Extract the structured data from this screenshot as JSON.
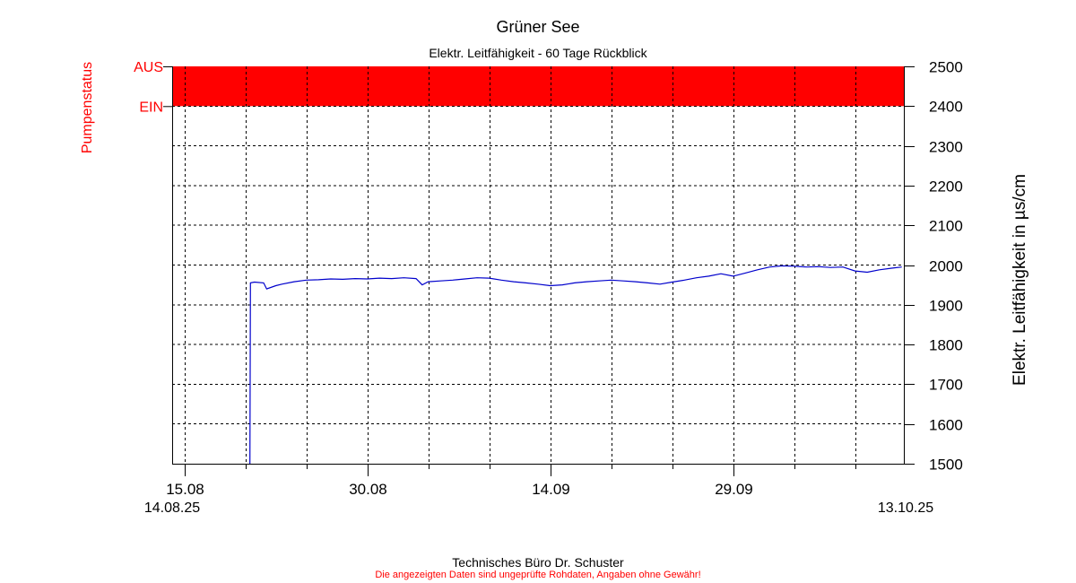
{
  "header": {
    "title": "Grüner See",
    "subtitle": "Elektr. Leitfähigkeit - 60 Tage Rückblick"
  },
  "footer": {
    "company": "Technisches Büro Dr. Schuster",
    "disclaimer": "Die angezeigten Daten sind ungeprüfte Rohdaten, Angaben ohne Gewähr!"
  },
  "colors": {
    "pump": "#ff0000",
    "series": "#0000cc",
    "axis": "#000000",
    "disclaimer": "#ff0000"
  },
  "chart_data": {
    "type": "line",
    "title": "Grüner See",
    "subtitle": "Elektr. Leitfähigkeit - 60 Tage Rückblick",
    "ylabel": "Elektr. Leitfähigkeit in µs/cm",
    "ylabel_left": "Pumpenstatus",
    "ylim": [
      1500,
      2500
    ],
    "yticks": [
      1500,
      1600,
      1700,
      1800,
      1900,
      2000,
      2100,
      2200,
      2300,
      2400,
      2500
    ],
    "xlim": [
      "2025-08-14",
      "2025-10-13"
    ],
    "x_major_ticks": [
      {
        "date": "2025-08-15",
        "label": "15.08"
      },
      {
        "date": "2025-08-30",
        "label": "30.08"
      },
      {
        "date": "2025-09-14",
        "label": "14.09"
      },
      {
        "date": "2025-09-29",
        "label": "29.09"
      }
    ],
    "x_minor_tick_dates": [
      "2025-08-20",
      "2025-08-25",
      "2025-09-04",
      "2025-09-09",
      "2025-09-19",
      "2025-09-24",
      "2025-10-04",
      "2025-10-09"
    ],
    "x_start_label": "14.08.25",
    "x_end_label": "13.10.25",
    "grid": true,
    "pump_status": {
      "labels": [
        "AUS",
        "EIN"
      ],
      "state": "AUS",
      "from": "2025-08-14",
      "to": "2025-10-13"
    },
    "series": [
      {
        "points": [
          [
            "2025-08-20T09:00",
            1500
          ],
          [
            "2025-08-20T10:00",
            1955
          ],
          [
            "2025-08-20T18:00",
            1957
          ],
          [
            "2025-08-21T12:00",
            1955
          ],
          [
            "2025-08-21T18:00",
            1940
          ],
          [
            "2025-08-22T12:00",
            1948
          ],
          [
            "2025-08-23T00:00",
            1952
          ],
          [
            "2025-08-24T00:00",
            1958
          ],
          [
            "2025-08-25T00:00",
            1962
          ],
          [
            "2025-08-26T00:00",
            1963
          ],
          [
            "2025-08-27T00:00",
            1965
          ],
          [
            "2025-08-28T00:00",
            1964
          ],
          [
            "2025-08-29T00:00",
            1966
          ],
          [
            "2025-08-30T00:00",
            1965
          ],
          [
            "2025-08-31T00:00",
            1967
          ],
          [
            "2025-09-01T00:00",
            1966
          ],
          [
            "2025-09-02T00:00",
            1968
          ],
          [
            "2025-09-03T00:00",
            1966
          ],
          [
            "2025-09-03T12:00",
            1950
          ],
          [
            "2025-09-04T00:00",
            1958
          ],
          [
            "2025-09-05T00:00",
            1960
          ],
          [
            "2025-09-06T00:00",
            1962
          ],
          [
            "2025-09-07T00:00",
            1965
          ],
          [
            "2025-09-08T00:00",
            1968
          ],
          [
            "2025-09-09T00:00",
            1967
          ],
          [
            "2025-09-10T00:00",
            1962
          ],
          [
            "2025-09-11T00:00",
            1958
          ],
          [
            "2025-09-12T00:00",
            1955
          ],
          [
            "2025-09-13T00:00",
            1952
          ],
          [
            "2025-09-14T00:00",
            1948
          ],
          [
            "2025-09-15T00:00",
            1950
          ],
          [
            "2025-09-16T00:00",
            1955
          ],
          [
            "2025-09-17T00:00",
            1958
          ],
          [
            "2025-09-18T00:00",
            1960
          ],
          [
            "2025-09-19T00:00",
            1962
          ],
          [
            "2025-09-20T00:00",
            1960
          ],
          [
            "2025-09-21T00:00",
            1958
          ],
          [
            "2025-09-22T00:00",
            1955
          ],
          [
            "2025-09-23T00:00",
            1952
          ],
          [
            "2025-09-24T00:00",
            1957
          ],
          [
            "2025-09-25T00:00",
            1962
          ],
          [
            "2025-09-26T00:00",
            1968
          ],
          [
            "2025-09-27T00:00",
            1972
          ],
          [
            "2025-09-28T00:00",
            1978
          ],
          [
            "2025-09-29T00:00",
            1972
          ],
          [
            "2025-09-30T00:00",
            1980
          ],
          [
            "2025-10-01T00:00",
            1988
          ],
          [
            "2025-10-02T00:00",
            1995
          ],
          [
            "2025-10-03T00:00",
            1998
          ],
          [
            "2025-10-04T00:00",
            1997
          ],
          [
            "2025-10-05T00:00",
            1995
          ],
          [
            "2025-10-06T00:00",
            1996
          ],
          [
            "2025-10-07T00:00",
            1994
          ],
          [
            "2025-10-08T00:00",
            1995
          ],
          [
            "2025-10-09T00:00",
            1985
          ],
          [
            "2025-10-10T00:00",
            1982
          ],
          [
            "2025-10-11T00:00",
            1988
          ],
          [
            "2025-10-12T00:00",
            1992
          ],
          [
            "2025-10-12T20:00",
            1995
          ]
        ]
      }
    ]
  }
}
